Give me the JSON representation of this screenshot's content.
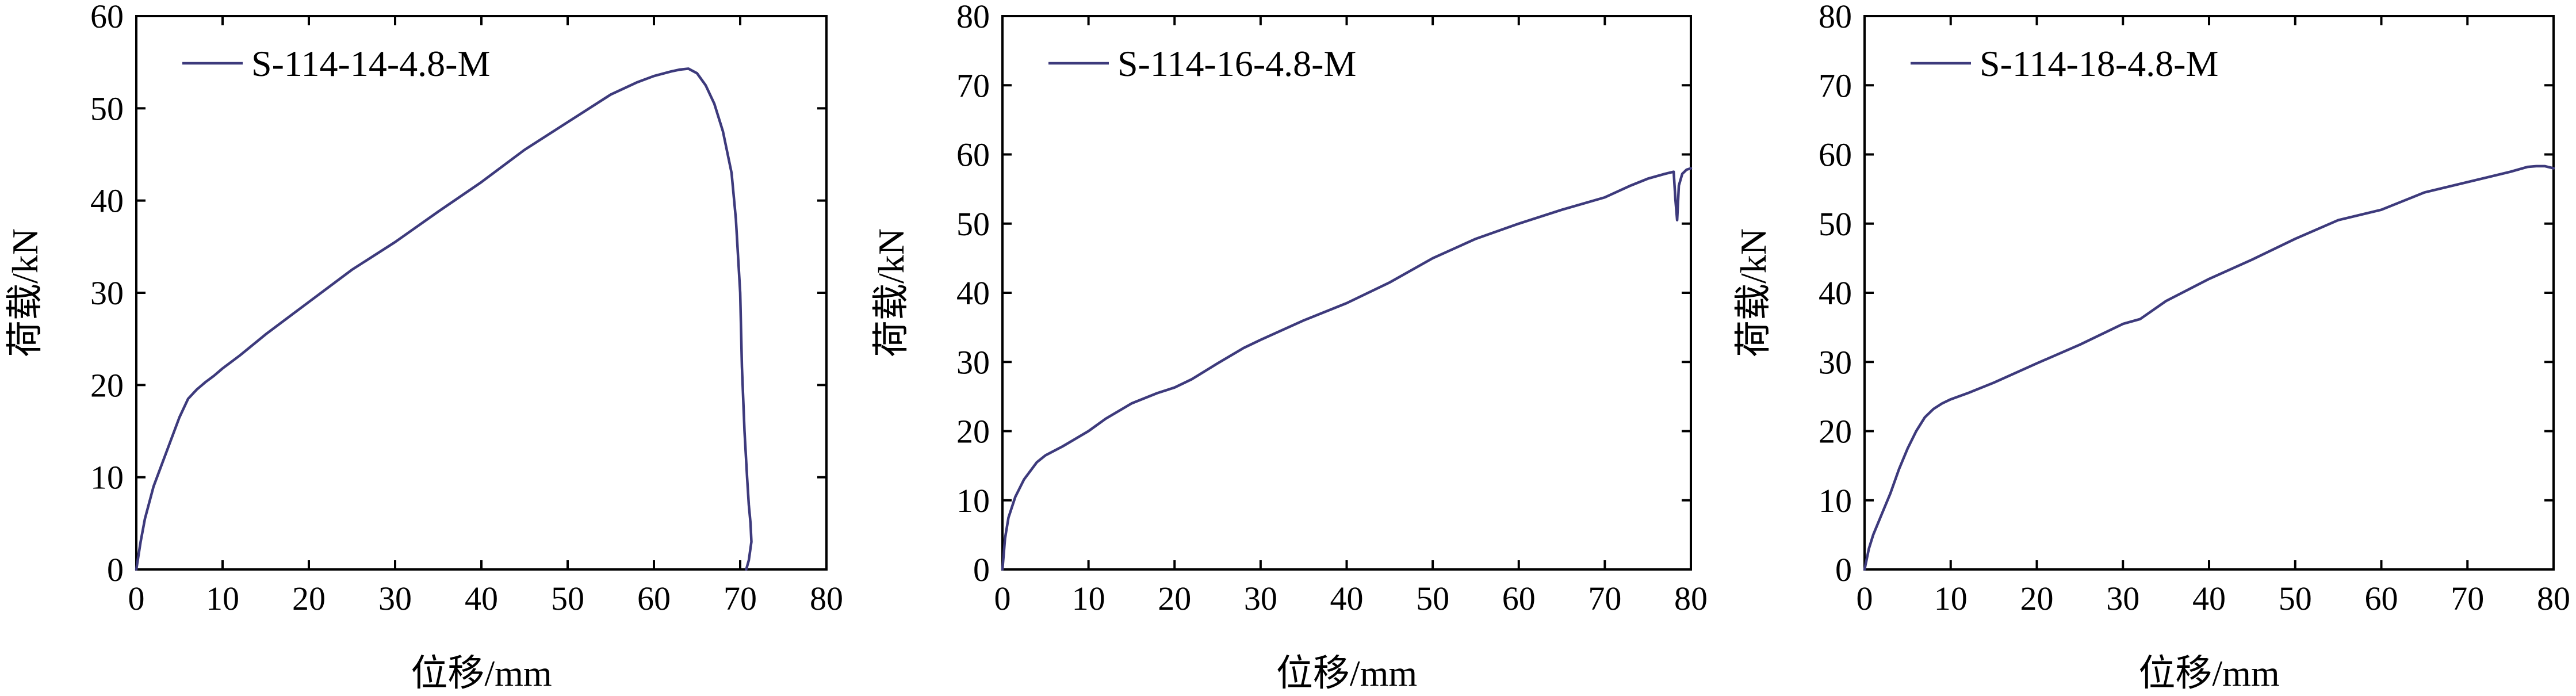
{
  "colors": {
    "series": "#3d3a7c",
    "axis": "#000000"
  },
  "chart_data": [
    {
      "type": "line",
      "title": "",
      "xlabel": "位移/mm",
      "ylabel": "荷载/kN",
      "xlim": [
        0,
        80
      ],
      "ylim": [
        0,
        60
      ],
      "xticks": [
        0,
        10,
        20,
        30,
        40,
        50,
        60,
        70,
        80
      ],
      "yticks": [
        0,
        10,
        20,
        30,
        40,
        50,
        60
      ],
      "grid": false,
      "legend": "top-left",
      "series": [
        {
          "name": "S-114-14-4.8-M",
          "x": [
            0,
            0.5,
            1,
            2,
            3,
            4,
            5,
            6,
            7,
            8,
            9,
            10,
            12,
            15,
            20,
            25,
            30,
            35,
            40,
            45,
            50,
            55,
            58,
            60,
            62,
            63,
            64,
            65,
            66,
            67,
            68,
            69,
            69.5,
            70,
            70.2,
            70.5,
            70.8,
            71,
            71.2,
            71.3,
            71,
            70.7
          ],
          "y": [
            0,
            3,
            5.5,
            9,
            11.5,
            14,
            16.5,
            18.5,
            19.5,
            20.3,
            21,
            21.8,
            23.2,
            25.5,
            29,
            32.5,
            35.5,
            38.8,
            42,
            45.5,
            48.5,
            51.5,
            52.8,
            53.5,
            54,
            54.2,
            54.3,
            53.8,
            52.5,
            50.5,
            47.5,
            43,
            38,
            30,
            22,
            15,
            10,
            7,
            5,
            3,
            1,
            0
          ]
        }
      ]
    },
    {
      "type": "line",
      "title": "",
      "xlabel": "位移/mm",
      "ylabel": "荷载/kN",
      "xlim": [
        0,
        80
      ],
      "ylim": [
        0,
        80
      ],
      "xticks": [
        0,
        10,
        20,
        30,
        40,
        50,
        60,
        70,
        80
      ],
      "yticks": [
        0,
        10,
        20,
        30,
        40,
        50,
        60,
        70,
        80
      ],
      "grid": false,
      "legend": "top-left",
      "series": [
        {
          "name": "S-114-16-4.8-M",
          "x": [
            0,
            0.3,
            0.7,
            1.5,
            2.5,
            4,
            5,
            7,
            10,
            12,
            15,
            18,
            20,
            22,
            25,
            28,
            30,
            35,
            40,
            45,
            50,
            55,
            60,
            65,
            70,
            73,
            75,
            77,
            78,
            78.2,
            78.4,
            78.6,
            79,
            79.5,
            80
          ],
          "y": [
            0,
            4.5,
            7.5,
            10.5,
            13,
            15.5,
            16.5,
            17.8,
            20,
            21.8,
            24,
            25.5,
            26.3,
            27.5,
            29.8,
            32,
            33.2,
            36,
            38.5,
            41.5,
            45,
            47.8,
            50,
            52,
            53.8,
            55.5,
            56.5,
            57.2,
            57.5,
            53.5,
            50.5,
            55.5,
            57.2,
            57.8,
            58
          ]
        }
      ]
    },
    {
      "type": "line",
      "title": "",
      "xlabel": "位移/mm",
      "ylabel": "荷载/kN",
      "xlim": [
        0,
        80
      ],
      "ylim": [
        0,
        80
      ],
      "xticks": [
        0,
        10,
        20,
        30,
        40,
        50,
        60,
        70,
        80
      ],
      "yticks": [
        0,
        10,
        20,
        30,
        40,
        50,
        60,
        70,
        80
      ],
      "grid": false,
      "legend": "top-left",
      "series": [
        {
          "name": "S-114-18-4.8-M",
          "x": [
            0,
            0.5,
            1,
            2,
            3,
            4,
            5,
            6,
            7,
            8,
            9,
            10,
            12,
            15,
            20,
            25,
            30,
            32,
            35,
            40,
            45,
            50,
            55,
            60,
            62,
            65,
            70,
            75,
            77,
            78,
            79,
            80
          ],
          "y": [
            0,
            3,
            5,
            8,
            11,
            14.5,
            17.5,
            20,
            22,
            23.2,
            24,
            24.6,
            25.5,
            27,
            29.8,
            32.5,
            35.5,
            36.2,
            38.8,
            42,
            44.8,
            47.8,
            50.5,
            52,
            53,
            54.5,
            56,
            57.5,
            58.2,
            58.3,
            58.3,
            58
          ]
        }
      ]
    }
  ]
}
